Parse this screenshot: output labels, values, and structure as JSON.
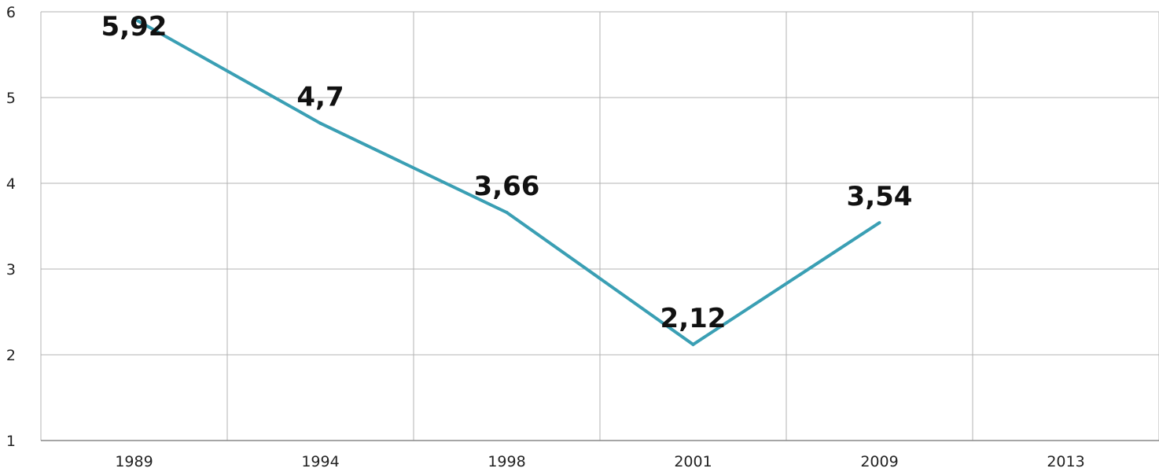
{
  "chart_data": {
    "type": "line",
    "title": "",
    "xlabel": "",
    "ylabel": "",
    "categories": [
      "1989",
      "1994",
      "1998",
      "2001",
      "2009",
      "2013"
    ],
    "series": [
      {
        "values": [
          5.92,
          4.7,
          3.66,
          2.12,
          3.54,
          null
        ]
      }
    ],
    "data_labels": [
      "5,92",
      "4,7",
      "3,66",
      "2,12",
      "3,54"
    ],
    "ylim": [
      1,
      6
    ],
    "yticks": [
      1,
      2,
      3,
      4,
      5,
      6
    ],
    "ytick_labels": [
      "1",
      "2",
      "3",
      "4",
      "5",
      "6"
    ],
    "grid": true,
    "legend": "none",
    "colors": {
      "line": "#3a9fb4",
      "grid": "#b3b3b3",
      "axis": "#888888"
    }
  }
}
